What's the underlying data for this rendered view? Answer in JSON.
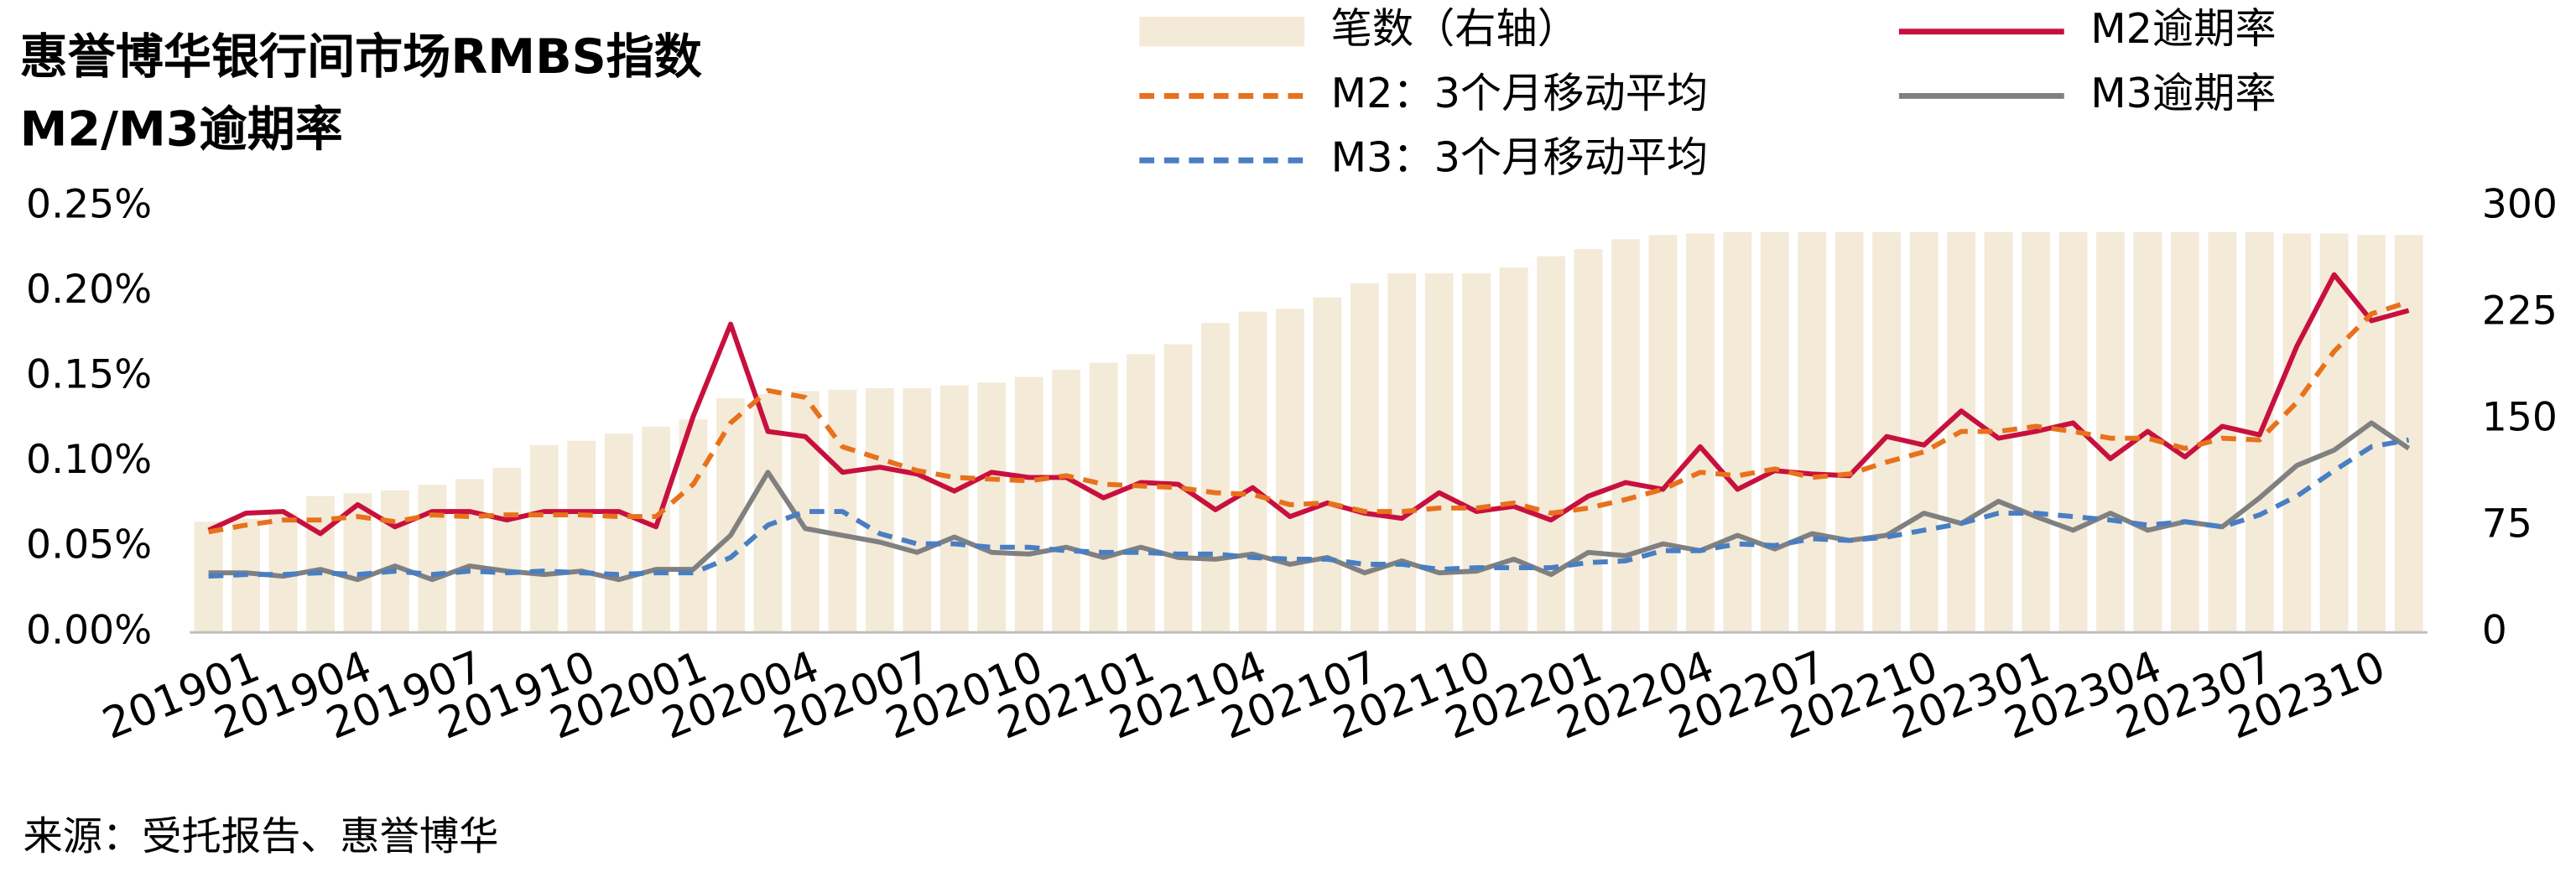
{
  "chart_data": {
    "type": "bar",
    "title": [
      "惠誉博华银行间市场RMBS指数",
      "M2/M3逾期率"
    ],
    "source": "来源：受托报告、惠誉博华",
    "categories": [
      "201901",
      null,
      null,
      "201904",
      null,
      null,
      "201907",
      null,
      null,
      "201910",
      null,
      null,
      "202001",
      null,
      null,
      "202004",
      null,
      null,
      "202007",
      null,
      null,
      "202010",
      null,
      null,
      "202101",
      null,
      null,
      "202104",
      null,
      null,
      "202107",
      null,
      null,
      "202110",
      null,
      null,
      "202201",
      null,
      null,
      "202204",
      null,
      null,
      "202207",
      null,
      null,
      "202210",
      null,
      null,
      "202301",
      null,
      null,
      "202304",
      null,
      null,
      "202307",
      null,
      null,
      "202310",
      null,
      null
    ],
    "ylim": [
      0,
      0.25
    ],
    "yticks": [
      {
        "value": 0,
        "label": "0.00%"
      },
      {
        "value": 0.05,
        "label": "0.05%"
      },
      {
        "value": 0.1,
        "label": "0.10%"
      },
      {
        "value": 0.15,
        "label": "0.15%"
      },
      {
        "value": 0.2,
        "label": "0.20%"
      },
      {
        "value": 0.25,
        "label": "0.25%"
      }
    ],
    "y2lim": [
      0,
      300
    ],
    "y2ticks": [
      0,
      75,
      150,
      225,
      300
    ],
    "grid": false,
    "legend": "top",
    "series": [
      {
        "name": "笔数（右轴）",
        "type": "bar",
        "axis": "y2",
        "color": "#f3ead8",
        "values": [
          78,
          80,
          84,
          96,
          98,
          100,
          104,
          108,
          116,
          132,
          135,
          140,
          145,
          150,
          165,
          168,
          170,
          171,
          172,
          172,
          174,
          176,
          180,
          185,
          190,
          196,
          203,
          218,
          226,
          228,
          236,
          246,
          253,
          253,
          253,
          257,
          265,
          270,
          277,
          280,
          281,
          282,
          282,
          282,
          282,
          282,
          282,
          282,
          282,
          282,
          282,
          282,
          282,
          282,
          282,
          282,
          281,
          281,
          280,
          280
        ]
      },
      {
        "name": "M2逾期率",
        "type": "line",
        "dashed": false,
        "color": "#c8103f",
        "values": [
          0.06,
          0.07,
          0.071,
          0.058,
          0.075,
          0.062,
          0.071,
          0.071,
          0.066,
          0.071,
          0.071,
          0.071,
          0.062,
          0.127,
          0.181,
          0.118,
          0.115,
          0.094,
          0.097,
          0.093,
          0.083,
          0.094,
          0.091,
          0.091,
          0.079,
          0.088,
          0.087,
          0.072,
          0.085,
          0.068,
          0.076,
          0.07,
          0.067,
          0.082,
          0.071,
          0.074,
          0.066,
          0.08,
          0.088,
          0.084,
          0.109,
          0.084,
          0.095,
          0.093,
          0.092,
          0.115,
          0.11,
          0.13,
          0.114,
          0.118,
          0.123,
          0.102,
          0.118,
          0.103,
          0.121,
          0.116,
          0.168,
          0.21,
          0.183,
          0.189
        ]
      },
      {
        "name": "M2：3个月移动平均",
        "type": "line",
        "dashed": true,
        "color": "#e8711c",
        "values": [
          0.059,
          0.063,
          0.066,
          0.066,
          0.068,
          0.065,
          0.069,
          0.068,
          0.069,
          0.069,
          0.069,
          0.068,
          0.068,
          0.087,
          0.123,
          0.142,
          0.138,
          0.109,
          0.102,
          0.095,
          0.091,
          0.09,
          0.089,
          0.092,
          0.087,
          0.086,
          0.085,
          0.082,
          0.081,
          0.075,
          0.076,
          0.071,
          0.071,
          0.073,
          0.073,
          0.076,
          0.07,
          0.073,
          0.078,
          0.084,
          0.094,
          0.092,
          0.096,
          0.091,
          0.093,
          0.1,
          0.106,
          0.118,
          0.118,
          0.121,
          0.118,
          0.114,
          0.114,
          0.108,
          0.114,
          0.113,
          0.135,
          0.165,
          0.187,
          0.194
        ]
      },
      {
        "name": "M3逾期率",
        "type": "line",
        "dashed": false,
        "color": "#808080",
        "values": [
          0.035,
          0.035,
          0.033,
          0.037,
          0.031,
          0.039,
          0.031,
          0.039,
          0.036,
          0.034,
          0.036,
          0.031,
          0.037,
          0.037,
          0.057,
          0.094,
          0.061,
          0.057,
          0.053,
          0.047,
          0.056,
          0.047,
          0.046,
          0.05,
          0.044,
          0.05,
          0.044,
          0.043,
          0.046,
          0.04,
          0.044,
          0.035,
          0.042,
          0.035,
          0.036,
          0.043,
          0.034,
          0.047,
          0.045,
          0.052,
          0.048,
          0.057,
          0.049,
          0.058,
          0.054,
          0.057,
          0.07,
          0.064,
          0.077,
          0.068,
          0.06,
          0.07,
          0.06,
          0.065,
          0.062,
          0.079,
          0.098,
          0.107,
          0.123,
          0.108
        ]
      },
      {
        "name": "M3：3个月移动平均",
        "type": "line",
        "dashed": true,
        "color": "#4a7ec2",
        "values": [
          0.033,
          0.034,
          0.034,
          0.035,
          0.034,
          0.036,
          0.034,
          0.036,
          0.035,
          0.036,
          0.035,
          0.034,
          0.035,
          0.035,
          0.044,
          0.063,
          0.071,
          0.071,
          0.058,
          0.052,
          0.052,
          0.05,
          0.05,
          0.048,
          0.047,
          0.047,
          0.046,
          0.046,
          0.044,
          0.043,
          0.043,
          0.04,
          0.04,
          0.037,
          0.038,
          0.038,
          0.038,
          0.041,
          0.042,
          0.048,
          0.048,
          0.052,
          0.051,
          0.055,
          0.054,
          0.056,
          0.06,
          0.064,
          0.07,
          0.07,
          0.068,
          0.066,
          0.063,
          0.065,
          0.062,
          0.069,
          0.08,
          0.095,
          0.109,
          0.113
        ]
      }
    ]
  }
}
